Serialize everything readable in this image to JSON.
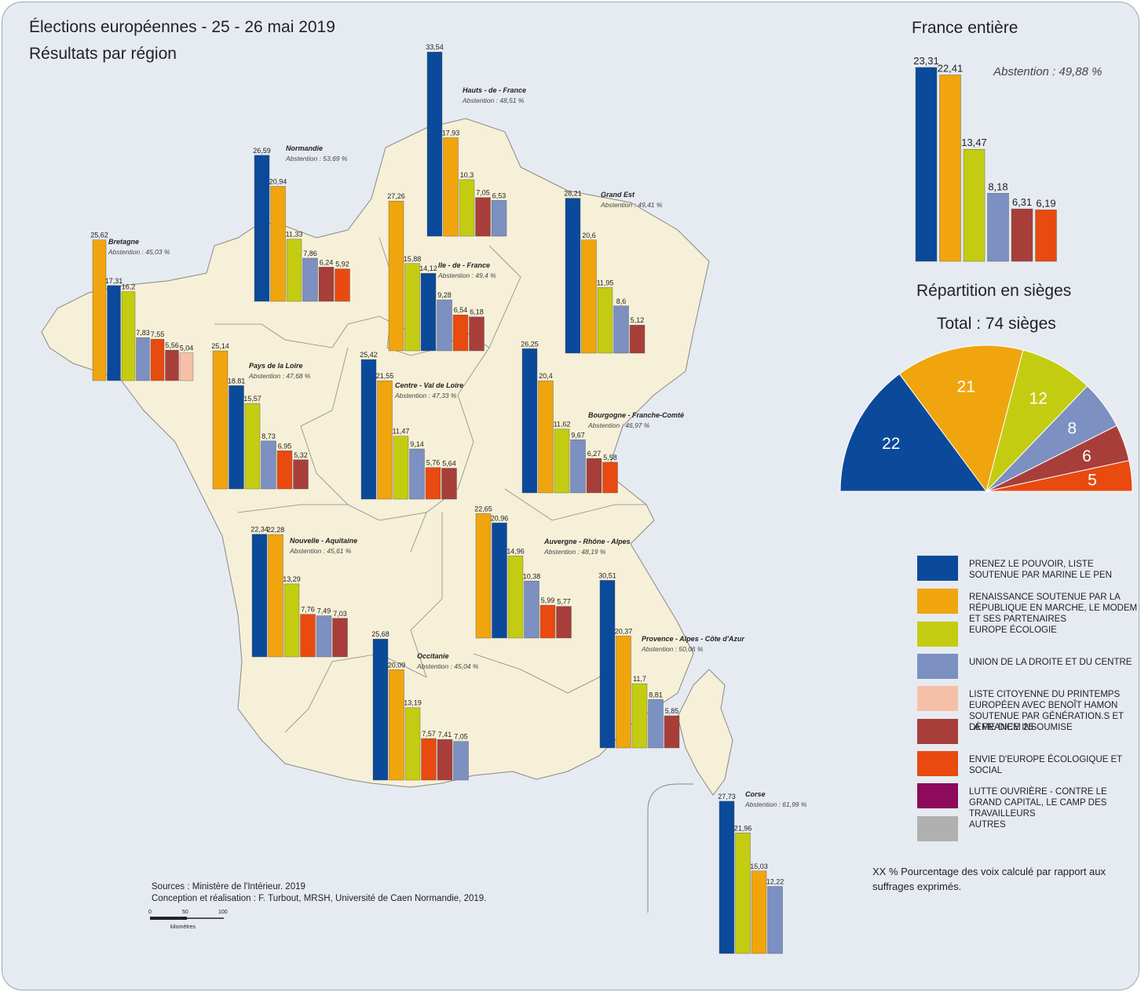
{
  "title_line1": "Élections européennes - 25 - 26 mai 2019",
  "title_line2": "Résultats par région",
  "colors": {
    "rn": "#0b4a9a",
    "lrem": "#f0a50e",
    "eelv": "#c4cc12",
    "lr": "#7c90c1",
    "ps": "#f6c0a8",
    "lfi": "#a83e3a",
    "generation": "#e84a10",
    "lo": "#8e0a5a",
    "autres": "#b0b0b0"
  },
  "legend": [
    {
      "key": "rn",
      "label": "Prenez le pouvoir, liste soutenue par Marine Le Pen"
    },
    {
      "key": "lrem",
      "label": "Renaissance soutenue par la République en Marche, le MoDem et ses partenaires"
    },
    {
      "key": "eelv",
      "label": "Europe Écologie"
    },
    {
      "key": "lr",
      "label": "Union de la droite et du centre"
    },
    {
      "key": "ps",
      "label": "Liste citoyenne du printemps européen avec Benoît Hamon soutenue par Génération.s et Dème-Diem 25"
    },
    {
      "key": "lfi",
      "label": "La France insoumise"
    },
    {
      "key": "generation",
      "label": "Envie d'Europe écologique et social"
    },
    {
      "key": "lo",
      "label": "Lutte ouvrière - contre le grand capital, le camp des travailleurs"
    },
    {
      "key": "autres",
      "label": "Autres"
    }
  ],
  "france": {
    "title": "France entière",
    "abstention": "Abstention : 49,88 %",
    "bars": [
      {
        "key": "rn",
        "value": 23.31,
        "label": "23,31"
      },
      {
        "key": "lrem",
        "value": 22.41,
        "label": "22,41"
      },
      {
        "key": "eelv",
        "value": 13.47,
        "label": "13,47"
      },
      {
        "key": "lr",
        "value": 8.18,
        "label": "8,18"
      },
      {
        "key": "lfi",
        "value": 6.31,
        "label": "6,31"
      },
      {
        "key": "generation",
        "value": 6.19,
        "label": "6,19"
      }
    ]
  },
  "seats": {
    "title": "Répartition en sièges",
    "total": "Total : 74 sièges",
    "slices": [
      {
        "key": "rn",
        "value": 22,
        "label": "22"
      },
      {
        "key": "lrem",
        "value": 21,
        "label": "21"
      },
      {
        "key": "eelv",
        "value": 12,
        "label": "12"
      },
      {
        "key": "lr",
        "value": 8,
        "label": "8"
      },
      {
        "key": "lfi",
        "value": 6,
        "label": "6"
      },
      {
        "key": "generation",
        "value": 5,
        "label": "5"
      }
    ]
  },
  "regions": [
    {
      "name": "Hauts - de - France",
      "abstention": "Abstention : 48,51 %",
      "bars": [
        {
          "key": "rn",
          "value": 33.54,
          "label": "33,54"
        },
        {
          "key": "lrem",
          "value": 17.93,
          "label": "17,93"
        },
        {
          "key": "eelv",
          "value": 10.3,
          "label": "10,3"
        },
        {
          "key": "lfi",
          "value": 7.05,
          "label": "7,05"
        },
        {
          "key": "lr",
          "value": 6.53,
          "label": "6,53"
        }
      ]
    },
    {
      "name": "Normandie",
      "abstention": "Abstention : 53,69 %",
      "bars": [
        {
          "key": "rn",
          "value": 26.59,
          "label": "26,59"
        },
        {
          "key": "lrem",
          "value": 20.94,
          "label": "20,94"
        },
        {
          "key": "eelv",
          "value": 11.33,
          "label": "11,33"
        },
        {
          "key": "lr",
          "value": 7.86,
          "label": "7,86"
        },
        {
          "key": "lfi",
          "value": 6.24,
          "label": "6,24"
        },
        {
          "key": "generation",
          "value": 5.92,
          "label": "5,92"
        }
      ]
    },
    {
      "name": "Bretagne",
      "abstention": "Abstention : 45,03 %",
      "bars": [
        {
          "key": "lrem",
          "value": 25.62,
          "label": "25,62"
        },
        {
          "key": "rn",
          "value": 17.31,
          "label": "17,31"
        },
        {
          "key": "eelv",
          "value": 16.2,
          "label": "16,2"
        },
        {
          "key": "lr",
          "value": 7.83,
          "label": "7,83"
        },
        {
          "key": "generation",
          "value": 7.55,
          "label": "7,55"
        },
        {
          "key": "lfi",
          "value": 5.56,
          "label": "5,56"
        },
        {
          "key": "ps",
          "value": 5.04,
          "label": "5,04"
        }
      ]
    },
    {
      "name": "Ile - de - France",
      "abstention": "Abstention : 49,4 %",
      "bars": [
        {
          "key": "lrem",
          "value": 27.26,
          "label": "27,26"
        },
        {
          "key": "eelv",
          "value": 15.88,
          "label": "15,88"
        },
        {
          "key": "rn",
          "value": 14.12,
          "label": "14,12"
        },
        {
          "key": "lr",
          "value": 9.28,
          "label": "9,28"
        },
        {
          "key": "generation",
          "value": 6.54,
          "label": "6,54"
        },
        {
          "key": "lfi",
          "value": 6.18,
          "label": "6,18"
        }
      ]
    },
    {
      "name": "Grand Est",
      "abstention": "Abstention : 49,41 %",
      "bars": [
        {
          "key": "rn",
          "value": 28.21,
          "label": "28,21"
        },
        {
          "key": "lrem",
          "value": 20.6,
          "label": "20,6"
        },
        {
          "key": "eelv",
          "value": 11.95,
          "label": "11,95"
        },
        {
          "key": "lr",
          "value": 8.6,
          "label": "8,6"
        },
        {
          "key": "lfi",
          "value": 5.12,
          "label": "5,12"
        }
      ]
    },
    {
      "name": "Pays de la Loire",
      "abstention": "Abstention : 47,68 %",
      "bars": [
        {
          "key": "lrem",
          "value": 25.14,
          "label": "25,14"
        },
        {
          "key": "rn",
          "value": 18.81,
          "label": "18,81"
        },
        {
          "key": "eelv",
          "value": 15.57,
          "label": "15,57"
        },
        {
          "key": "lr",
          "value": 8.73,
          "label": "8,73"
        },
        {
          "key": "generation",
          "value": 6.95,
          "label": "6,95"
        },
        {
          "key": "lfi",
          "value": 5.32,
          "label": "5,32"
        }
      ]
    },
    {
      "name": "Centre - Val de Loire",
      "abstention": "Abstention : 47,33 %",
      "bars": [
        {
          "key": "rn",
          "value": 25.42,
          "label": "25,42"
        },
        {
          "key": "lrem",
          "value": 21.55,
          "label": "21,55"
        },
        {
          "key": "eelv",
          "value": 11.47,
          "label": "11,47"
        },
        {
          "key": "lr",
          "value": 9.14,
          "label": "9,14"
        },
        {
          "key": "generation",
          "value": 5.76,
          "label": "5,76"
        },
        {
          "key": "lfi",
          "value": 5.64,
          "label": "5,64"
        }
      ]
    },
    {
      "name": "Bourgogne - Franche-Comté",
      "abstention": "Abstention : 46,97 %",
      "bars": [
        {
          "key": "rn",
          "value": 26.25,
          "label": "26,25"
        },
        {
          "key": "lrem",
          "value": 20.4,
          "label": "20,4"
        },
        {
          "key": "eelv",
          "value": 11.62,
          "label": "11,62"
        },
        {
          "key": "lr",
          "value": 9.67,
          "label": "9,67"
        },
        {
          "key": "lfi",
          "value": 6.27,
          "label": "6,27"
        },
        {
          "key": "generation",
          "value": 5.58,
          "label": "5,58"
        }
      ]
    },
    {
      "name": "Nouvelle - Aquitaine",
      "abstention": "Abstention : 45,61 %",
      "bars": [
        {
          "key": "rn",
          "value": 22.34,
          "label": "22,34"
        },
        {
          "key": "lrem",
          "value": 22.28,
          "label": "22,28"
        },
        {
          "key": "eelv",
          "value": 13.29,
          "label": "13,29"
        },
        {
          "key": "generation",
          "value": 7.76,
          "label": "7,76"
        },
        {
          "key": "lr",
          "value": 7.49,
          "label": "7,49"
        },
        {
          "key": "lfi",
          "value": 7.03,
          "label": "7,03"
        }
      ]
    },
    {
      "name": "Auvergne - Rhône - Alpes",
      "abstention": "Abstention : 48,19 %",
      "bars": [
        {
          "key": "lrem",
          "value": 22.65,
          "label": "22,65"
        },
        {
          "key": "rn",
          "value": 20.96,
          "label": "20,96"
        },
        {
          "key": "eelv",
          "value": 14.96,
          "label": "14,96"
        },
        {
          "key": "lr",
          "value": 10.38,
          "label": "10,38"
        },
        {
          "key": "generation",
          "value": 5.99,
          "label": "5,99"
        },
        {
          "key": "lfi",
          "value": 5.77,
          "label": "5,77"
        }
      ]
    },
    {
      "name": "Occitanie",
      "abstention": "Abstention : 45,04 %",
      "bars": [
        {
          "key": "rn",
          "value": 25.68,
          "label": "25,68"
        },
        {
          "key": "lrem",
          "value": 20.09,
          "label": "20,09"
        },
        {
          "key": "eelv",
          "value": 13.19,
          "label": "13,19"
        },
        {
          "key": "generation",
          "value": 7.57,
          "label": "7,57"
        },
        {
          "key": "lfi",
          "value": 7.41,
          "label": "7,41"
        },
        {
          "key": "lr",
          "value": 7.05,
          "label": "7,05"
        }
      ]
    },
    {
      "name": "Provence - Alpes - Côte d'Azur",
      "abstention": "Abstention : 50,06 %",
      "bars": [
        {
          "key": "rn",
          "value": 30.51,
          "label": "30,51"
        },
        {
          "key": "lrem",
          "value": 20.37,
          "label": "20,37"
        },
        {
          "key": "eelv",
          "value": 11.7,
          "label": "11,7"
        },
        {
          "key": "lr",
          "value": 8.81,
          "label": "8,81"
        },
        {
          "key": "lfi",
          "value": 5.85,
          "label": "5,85"
        }
      ]
    },
    {
      "name": "Corse",
      "abstention": "Abstention : 61,99 %",
      "bars": [
        {
          "key": "rn",
          "value": 27.73,
          "label": "27,73"
        },
        {
          "key": "eelv",
          "value": 21.96,
          "label": "21,96"
        },
        {
          "key": "lrem",
          "value": 15.03,
          "label": "15,03"
        },
        {
          "key": "lr",
          "value": 12.22,
          "label": "12,22"
        }
      ]
    }
  ],
  "footnote": "XX %   Pourcentage des voix calculé par rapport aux suffrages exprimés.",
  "sources": "Sources : Ministère de l'Intérieur. 2019",
  "credits": "Conception et réalisation : F. Turbout, MRSH, Université de Caen Normandie, 2019.",
  "scale": {
    "labels": [
      "0",
      "50",
      "100"
    ],
    "unit": "kilomètres"
  }
}
